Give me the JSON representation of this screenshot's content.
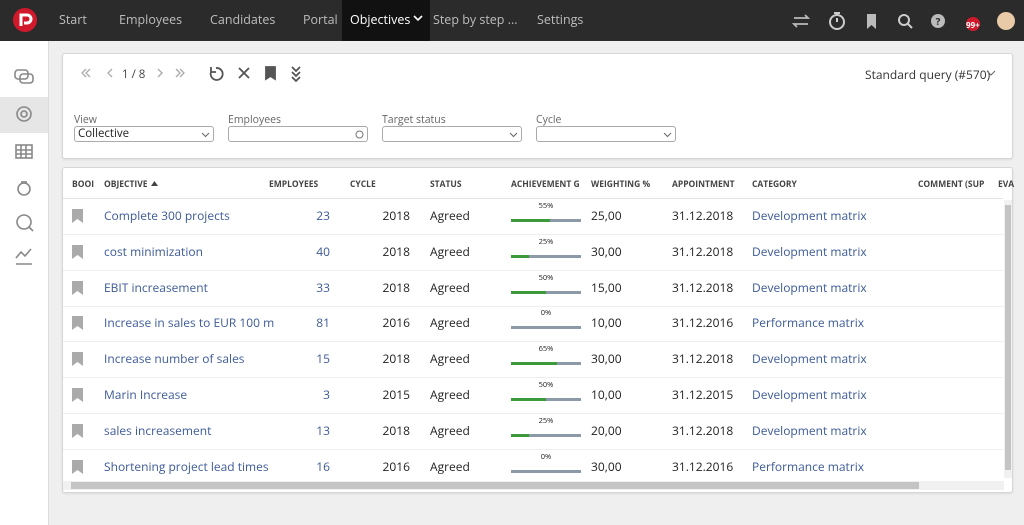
{
  "nav": {
    "items": [
      "Start",
      "Employees",
      "Candidates",
      "Portal",
      "Objectives",
      "Step by step ...",
      "Settings"
    ],
    "badge": "99+"
  },
  "toolbar": {
    "pager": "1 / 8",
    "query": "Standard query (#570)"
  },
  "filters": [
    {
      "label": "View",
      "value": "Collective"
    },
    {
      "label": "Employees"
    },
    {
      "label": "Target status"
    },
    {
      "label": "Cycle"
    }
  ],
  "table": {
    "columns": [
      "BOOI",
      "OBJECTIVE",
      "EMPLOYEES",
      "CYCLE",
      "STATUS",
      "ACHIEVEMENT G",
      "WEIGHTING %",
      "APPOINTMENT",
      "CATEGORY",
      "COMMENT (SUP",
      "EVA"
    ],
    "rows": [
      [
        "Complete 300 projects",
        23,
        2018,
        "Agreed",
        "55%",
        "25,00",
        "31.12.2018",
        "Development matrix"
      ],
      [
        "cost minimization",
        40,
        2018,
        "Agreed",
        "25%",
        "30,00",
        "31.12.2018",
        "Development matrix"
      ],
      [
        "EBIT increasement",
        33,
        2018,
        "Agreed",
        "50%",
        "15,00",
        "31.12.2018",
        "Development matrix"
      ],
      [
        "Increase in sales to EUR 100 m",
        81,
        2016,
        "Agreed",
        "0%",
        "10,00",
        "31.12.2016",
        "Performance matrix"
      ],
      [
        "Increase number of sales",
        15,
        2018,
        "Agreed",
        "65%",
        "30,00",
        "31.12.2018",
        "Development matrix"
      ],
      [
        "Marin Increase",
        3,
        2015,
        "Agreed",
        "50%",
        "10,00",
        "31.12.2015",
        "Development matrix"
      ],
      [
        "sales increasement",
        13,
        2018,
        "Agreed",
        "25%",
        "20,00",
        "31.12.2018",
        "Development matrix"
      ],
      [
        "Shortening project lead times",
        16,
        2016,
        "Agreed",
        "0%",
        "30,00",
        "31.12.2016",
        "Performance matrix"
      ]
    ]
  }
}
